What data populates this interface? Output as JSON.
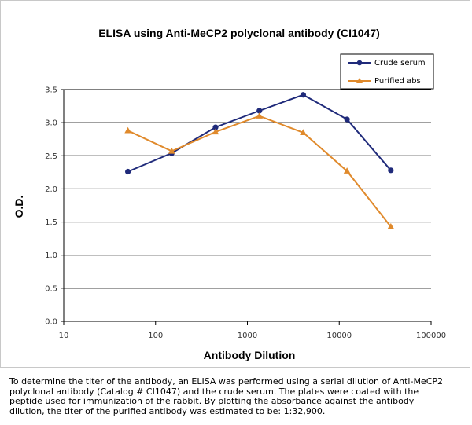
{
  "chart_data": {
    "type": "line",
    "title": "ELISA using Anti-MeCP2 polyclonal antibody (CI1047)",
    "xlabel": "Antibody Dilution",
    "ylabel": "O.D.",
    "x_scale": "log",
    "xlim": [
      10,
      100000
    ],
    "ylim": [
      0,
      3.5
    ],
    "x_ticks": [
      "10",
      "100",
      "1000",
      "10000",
      "100000"
    ],
    "y_ticks": [
      "0.0",
      "0.5",
      "1.0",
      "1.5",
      "2.0",
      "2.5",
      "3.0",
      "3.5"
    ],
    "grid": "horizontal",
    "legend_position": "top-right",
    "series": [
      {
        "name": "Crude serum",
        "color": "#1f2a7a",
        "marker": "circle",
        "x": [
          50,
          150,
          450,
          1350,
          4050,
          12150,
          36450
        ],
        "y": [
          2.26,
          2.54,
          2.93,
          3.18,
          3.42,
          3.05,
          2.28
        ]
      },
      {
        "name": "Purified abs",
        "color": "#e08a2c",
        "marker": "triangle",
        "x": [
          50,
          150,
          450,
          1350,
          4050,
          12150,
          36450
        ],
        "y": [
          2.88,
          2.57,
          2.86,
          3.1,
          2.85,
          2.27,
          1.43
        ]
      }
    ]
  },
  "caption": "To determine the titer of the antibody, an ELISA was performed using a serial dilution of Anti-MeCP2 polyclonal antibody (Catalog # CI1047) and the crude serum. The plates were coated with the peptide used for immunization of the rabbit. By plotting the absorbance against the antibody dilution, the titer of the purified antibody was estimated to be: 1:32,900."
}
